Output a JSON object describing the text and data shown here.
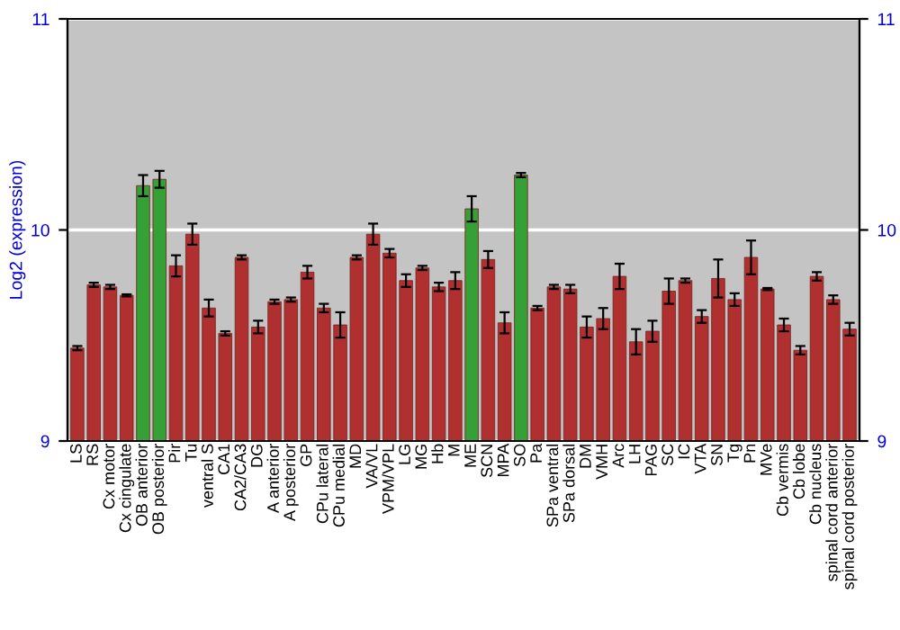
{
  "chart_data": {
    "type": "bar",
    "ylabel": "Log2 (expression)",
    "categories": [
      "LS",
      "RS",
      "Cx motor",
      "Cx cingulate",
      "OB anterior",
      "OB posterior",
      "Pir",
      "Tu",
      "ventral S",
      "CA1",
      "CA2/CA3",
      "DG",
      "A anterior",
      "A posterior",
      "GP",
      "CPu lateral",
      "CPu medial",
      "MD",
      "VA/VL",
      "VPM/VPL",
      "LG",
      "MG",
      "Hb",
      "M",
      "ME",
      "SCN",
      "MPA",
      "SO",
      "Pa",
      "SPa ventral",
      "SPa dorsal",
      "DM",
      "VMH",
      "Arc",
      "LH",
      "PAG",
      "SC",
      "IC",
      "VTA",
      "SN",
      "Tg",
      "Pn",
      "MVe",
      "Cb vermis",
      "Cb lobe",
      "Cb nucleus",
      "spinal cord anterior",
      "spinal cord posterior"
    ],
    "values": [
      9.44,
      9.74,
      9.73,
      9.69,
      10.21,
      10.24,
      9.83,
      9.98,
      9.63,
      9.51,
      9.87,
      9.54,
      9.66,
      9.67,
      9.8,
      9.63,
      9.55,
      9.87,
      9.98,
      9.89,
      9.76,
      9.82,
      9.73,
      9.76,
      10.1,
      9.86,
      9.56,
      10.26,
      9.63,
      9.73,
      9.72,
      9.54,
      9.58,
      9.78,
      9.47,
      9.52,
      9.71,
      9.76,
      9.59,
      9.77,
      9.67,
      9.87,
      9.72,
      9.55,
      9.43,
      9.78,
      9.67,
      9.53
    ],
    "errors": [
      0.01,
      0.01,
      0.01,
      0.005,
      0.05,
      0.04,
      0.05,
      0.05,
      0.04,
      0.01,
      0.01,
      0.03,
      0.01,
      0.01,
      0.03,
      0.02,
      0.06,
      0.01,
      0.05,
      0.02,
      0.03,
      0.01,
      0.02,
      0.04,
      0.06,
      0.04,
      0.05,
      0.01,
      0.01,
      0.01,
      0.02,
      0.05,
      0.05,
      0.06,
      0.06,
      0.05,
      0.06,
      0.01,
      0.03,
      0.09,
      0.03,
      0.08,
      0.005,
      0.03,
      0.02,
      0.02,
      0.02,
      0.03
    ],
    "colors": [
      "#b03030",
      "#b03030",
      "#b03030",
      "#b03030",
      "#35a035",
      "#35a035",
      "#b03030",
      "#b03030",
      "#b03030",
      "#b03030",
      "#b03030",
      "#b03030",
      "#b03030",
      "#b03030",
      "#b03030",
      "#b03030",
      "#b03030",
      "#b03030",
      "#b03030",
      "#b03030",
      "#b03030",
      "#b03030",
      "#b03030",
      "#b03030",
      "#35a035",
      "#b03030",
      "#b03030",
      "#35a035",
      "#b03030",
      "#b03030",
      "#b03030",
      "#b03030",
      "#b03030",
      "#b03030",
      "#b03030",
      "#b03030",
      "#b03030",
      "#b03030",
      "#b03030",
      "#b03030",
      "#b03030",
      "#b03030",
      "#b03030",
      "#b03030",
      "#b03030",
      "#b03030",
      "#b03030",
      "#b03030"
    ],
    "ylim": [
      9,
      11
    ],
    "yticks": [
      9,
      10,
      11
    ],
    "y2lim": [
      9,
      11
    ],
    "y2ticks": [
      9,
      10,
      11
    ],
    "grid": "y"
  }
}
